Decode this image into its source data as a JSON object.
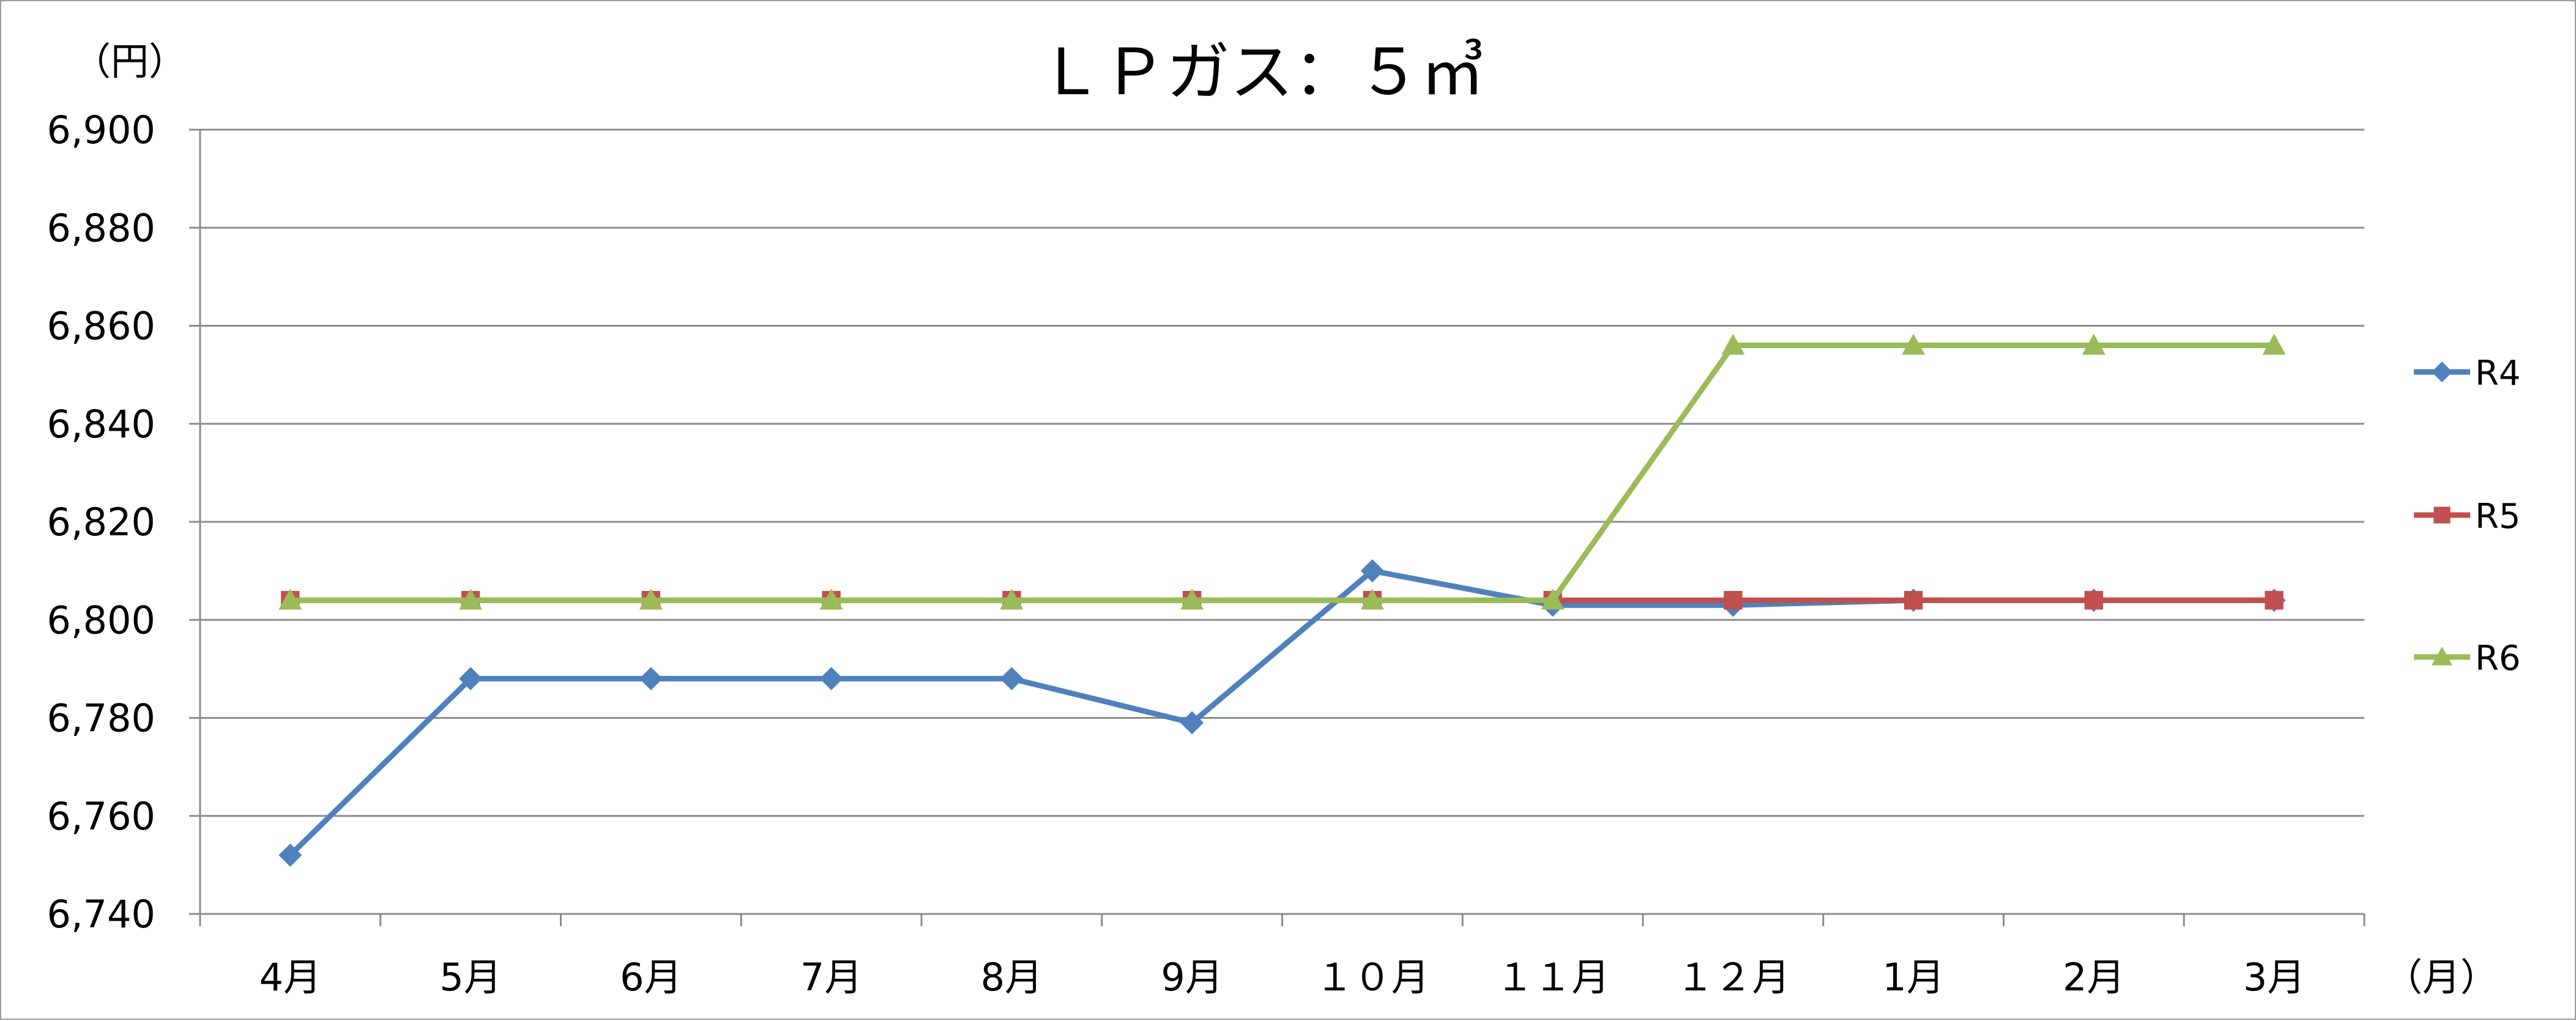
{
  "chart_data": {
    "type": "line",
    "title": "ＬＰガス：５㎥",
    "ylabel": "（円）",
    "xlabel": "（月）",
    "categories": [
      "4月",
      "5月",
      "6月",
      "7月",
      "8月",
      "9月",
      "１０月",
      "１１月",
      "１２月",
      "1月",
      "2月",
      "3月"
    ],
    "ylim": [
      6740,
      6900
    ],
    "yticks": [
      6740,
      6760,
      6780,
      6800,
      6820,
      6840,
      6860,
      6880,
      6900
    ],
    "ytick_labels": [
      "6,740",
      "6,760",
      "6,780",
      "6,800",
      "6,820",
      "6,840",
      "6,860",
      "6,880",
      "6,900"
    ],
    "grid": true,
    "legend_position": "right",
    "series": [
      {
        "name": "R4",
        "color": "#4F81BD",
        "marker": "diamond",
        "values": [
          6752,
          6788,
          6788,
          6788,
          6788,
          6779,
          6810,
          6803,
          6803,
          6804,
          6804,
          6804
        ]
      },
      {
        "name": "R5",
        "color": "#C0504D",
        "marker": "square",
        "values": [
          6804,
          6804,
          6804,
          6804,
          6804,
          6804,
          6804,
          6804,
          6804,
          6804,
          6804,
          6804
        ]
      },
      {
        "name": "R6",
        "color": "#9BBB59",
        "marker": "triangle",
        "values": [
          6804,
          6804,
          6804,
          6804,
          6804,
          6804,
          6804,
          6804,
          6856,
          6856,
          6856,
          6856
        ]
      }
    ]
  }
}
